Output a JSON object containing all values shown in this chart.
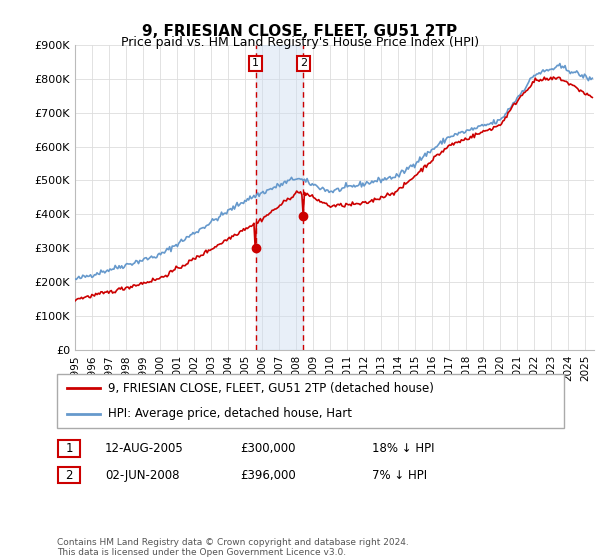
{
  "title": "9, FRIESIAN CLOSE, FLEET, GU51 2TP",
  "subtitle": "Price paid vs. HM Land Registry's House Price Index (HPI)",
  "ylim": [
    0,
    900000
  ],
  "xlim": [
    1995.0,
    2025.5
  ],
  "ytick_labels": [
    "£0",
    "£100K",
    "£200K",
    "£300K",
    "£400K",
    "£500K",
    "£600K",
    "£700K",
    "£800K",
    "£900K"
  ],
  "ytick_values": [
    0,
    100000,
    200000,
    300000,
    400000,
    500000,
    600000,
    700000,
    800000,
    900000
  ],
  "line_property_color": "#cc0000",
  "line_hpi_color": "#6699cc",
  "transaction1_date": 2005.62,
  "transaction1_price": 300000,
  "transaction2_date": 2008.42,
  "transaction2_price": 396000,
  "shade_color": "#ccddf0",
  "legend_property_label": "9, FRIESIAN CLOSE, FLEET, GU51 2TP (detached house)",
  "legend_hpi_label": "HPI: Average price, detached house, Hart",
  "table_row1_date": "12-AUG-2005",
  "table_row1_price": "£300,000",
  "table_row1_hpi": "18% ↓ HPI",
  "table_row2_date": "02-JUN-2008",
  "table_row2_price": "£396,000",
  "table_row2_hpi": "7% ↓ HPI",
  "footer": "Contains HM Land Registry data © Crown copyright and database right 2024.\nThis data is licensed under the Open Government Licence v3.0.",
  "background_color": "#ffffff",
  "grid_color": "#dddddd"
}
